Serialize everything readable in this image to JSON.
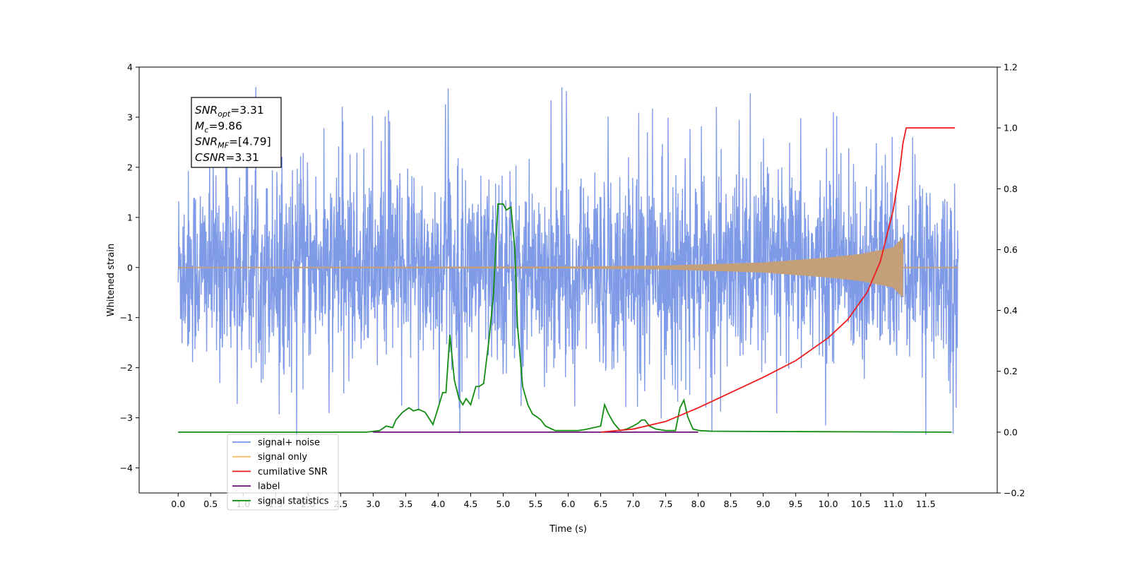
{
  "chart_data": {
    "type": "line",
    "xlabel": "Time (s)",
    "ylabel_left": "Whitened strain",
    "ylabel_right": "",
    "xlim": [
      -0.6,
      12.6
    ],
    "ylim_left": [
      -4.5,
      4
    ],
    "ylim_right": [
      -0.2,
      1.2
    ],
    "x_ticks": [
      "0.0",
      "0.5",
      "1.0",
      "1.5",
      "2.0",
      "2.5",
      "3.0",
      "3.5",
      "4.0",
      "4.5",
      "5.0",
      "5.5",
      "6.0",
      "6.5",
      "7.0",
      "7.5",
      "8.0",
      "8.5",
      "9.0",
      "9.5",
      "10.0",
      "10.5",
      "11.0",
      "11.5"
    ],
    "y_ticks_left": [
      "4",
      "3",
      "2",
      "1",
      "0",
      "−1",
      "−2",
      "−3",
      "−4"
    ],
    "y_ticks_right": [
      "1.2",
      "1.0",
      "0.8",
      "0.6",
      "0.4",
      "0.2",
      "0.0",
      "−0.2"
    ],
    "grid": false,
    "legend_position": "lower-left",
    "annotation": {
      "lines": [
        {
          "base": "SNR",
          "sub": "opt",
          "rest": "=3.31"
        },
        {
          "base": "M",
          "sub": "c",
          "rest": "=9.86"
        },
        {
          "base": "SNR",
          "sub": "MF",
          "rest": "=[4.79]"
        },
        {
          "base": "CSNR",
          "sub": "",
          "rest": "=3.31"
        }
      ]
    },
    "series": [
      {
        "name": "signal+ noise",
        "axis": "left",
        "color": "#7895e6",
        "kind": "noise",
        "x_range": [
          0.0,
          12.0
        ],
        "typical_amplitude": 1.5,
        "spike_max": 3.6,
        "spike_min": -4.1
      },
      {
        "name": "signal only",
        "axis": "left",
        "color": "#f5be6b",
        "kind": "chirp",
        "x_range": [
          0.0,
          12.0
        ],
        "merger_time": 11.15,
        "envelope": [
          [
            0.0,
            0.01
          ],
          [
            6.0,
            0.02
          ],
          [
            7.5,
            0.04
          ],
          [
            9.0,
            0.1
          ],
          [
            10.0,
            0.2
          ],
          [
            10.5,
            0.27
          ],
          [
            11.0,
            0.4
          ],
          [
            11.15,
            0.6
          ]
        ]
      },
      {
        "name": "cumilative SNR",
        "axis": "right",
        "color": "#ee1c1c",
        "x": [
          6.5,
          7.0,
          7.5,
          8.0,
          8.5,
          9.0,
          9.5,
          10.0,
          10.3,
          10.6,
          10.8,
          11.0,
          11.1,
          11.15,
          11.2,
          11.95
        ],
        "y": [
          0.0,
          0.01,
          0.035,
          0.08,
          0.13,
          0.18,
          0.235,
          0.31,
          0.37,
          0.46,
          0.56,
          0.73,
          0.86,
          0.95,
          1.0,
          1.0
        ]
      },
      {
        "name": "label",
        "axis": "right",
        "color": "#6b0f78",
        "x": [
          3.0,
          8.0
        ],
        "y": [
          0.0,
          0.0
        ]
      },
      {
        "name": "signal statistics",
        "axis": "right",
        "color": "#128c12",
        "x": [
          0.0,
          2.9,
          3.1,
          3.2,
          3.3,
          3.35,
          3.45,
          3.55,
          3.62,
          3.7,
          3.8,
          3.92,
          4.0,
          4.07,
          4.12,
          4.18,
          4.25,
          4.32,
          4.38,
          4.43,
          4.5,
          4.58,
          4.63,
          4.7,
          4.78,
          4.85,
          4.92,
          5.0,
          5.05,
          5.12,
          5.18,
          5.22,
          5.3,
          5.38,
          5.45,
          5.52,
          5.58,
          5.65,
          5.8,
          6.0,
          6.15,
          6.25,
          6.4,
          6.5,
          6.56,
          6.62,
          6.7,
          6.8,
          6.9,
          7.0,
          7.08,
          7.13,
          7.18,
          7.25,
          7.35,
          7.5,
          7.65,
          7.72,
          7.78,
          7.84,
          7.92,
          8.02,
          8.2,
          9.0,
          11.9
        ],
        "y": [
          0.0,
          0.0,
          0.005,
          0.02,
          0.015,
          0.04,
          0.065,
          0.08,
          0.07,
          0.075,
          0.065,
          0.025,
          0.08,
          0.13,
          0.13,
          0.32,
          0.17,
          0.11,
          0.09,
          0.11,
          0.09,
          0.15,
          0.15,
          0.16,
          0.3,
          0.45,
          0.75,
          0.75,
          0.73,
          0.74,
          0.6,
          0.35,
          0.15,
          0.09,
          0.06,
          0.05,
          0.04,
          0.02,
          0.005,
          0.005,
          0.005,
          0.008,
          0.015,
          0.02,
          0.09,
          0.06,
          0.03,
          0.005,
          0.01,
          0.02,
          0.03,
          0.04,
          0.04,
          0.02,
          0.01,
          0.005,
          0.005,
          0.08,
          0.105,
          0.05,
          0.01,
          0.005,
          0.003,
          0.002,
          0.0
        ]
      }
    ],
    "legend_entries": [
      {
        "label": "signal+ noise",
        "color": "#7895e6"
      },
      {
        "label": "signal only",
        "color": "#f5be6b"
      },
      {
        "label": "cumilative SNR",
        "color": "#ee1c1c"
      },
      {
        "label": "label",
        "color": "#6b0f78"
      },
      {
        "label": "signal statistics",
        "color": "#128c12"
      }
    ]
  }
}
